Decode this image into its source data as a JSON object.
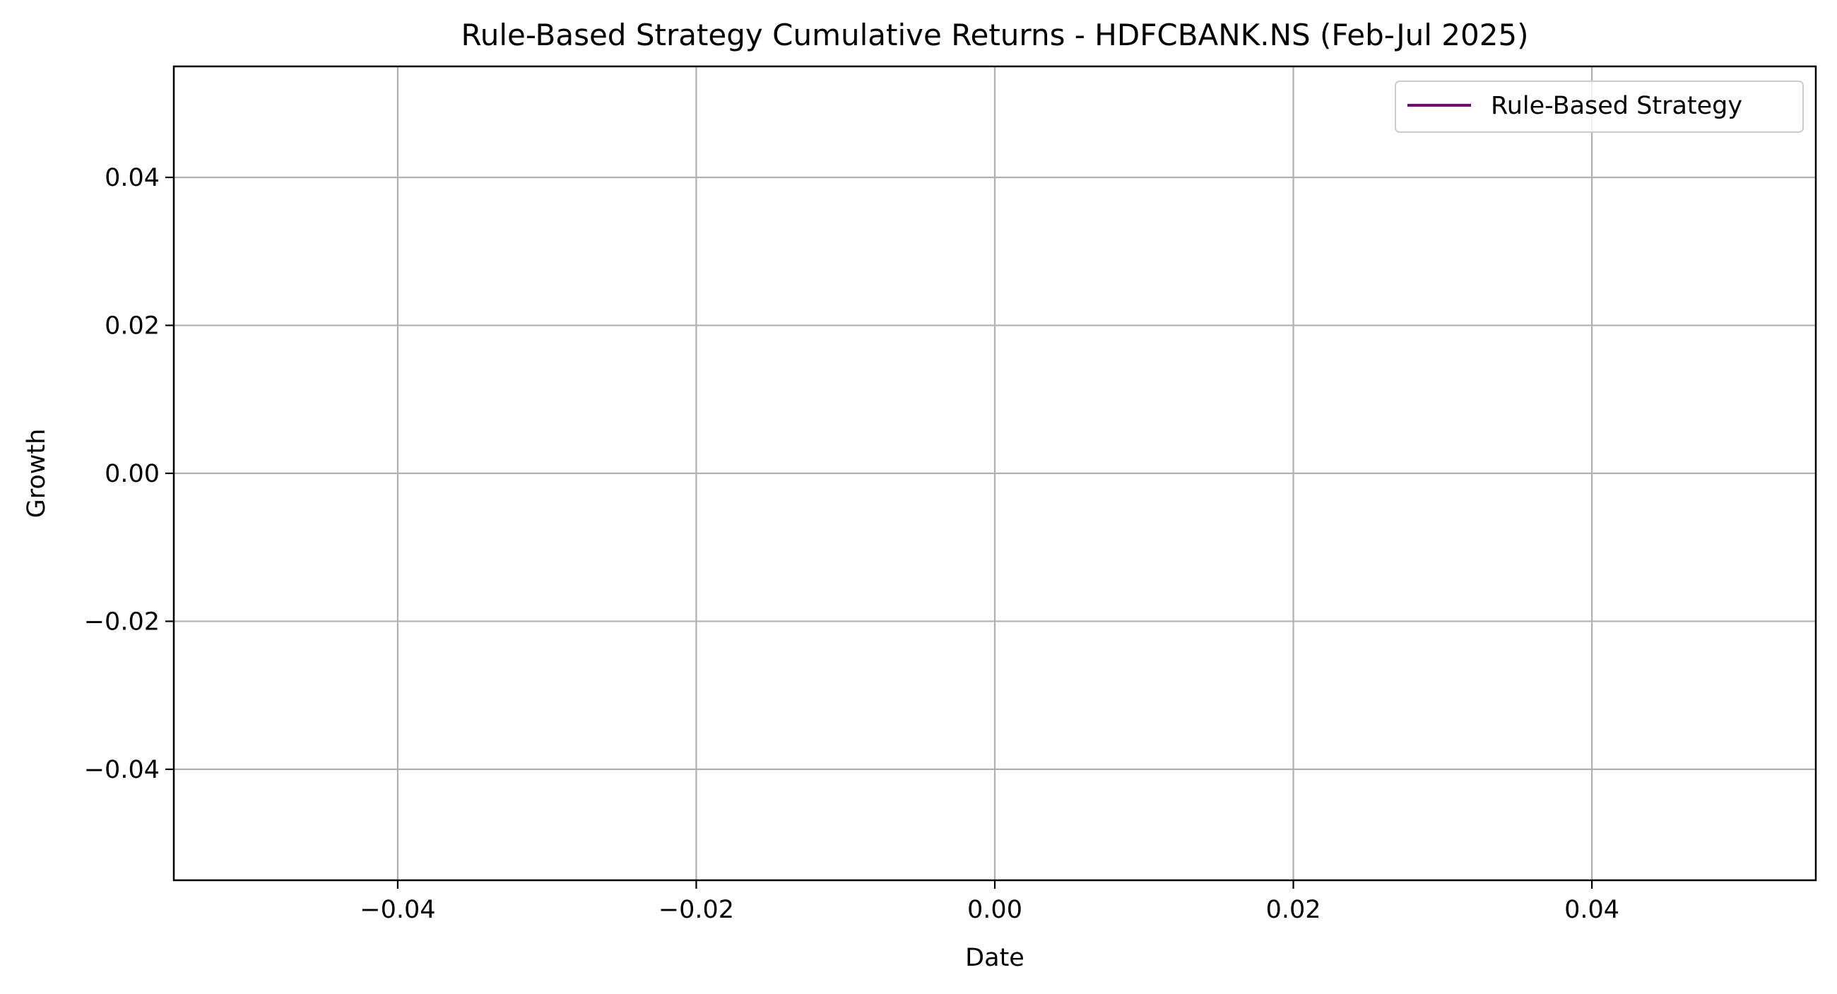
{
  "chart_data": {
    "type": "line",
    "title": "Rule-Based Strategy Cumulative Returns - HDFCBANK.NS (Feb-Jul 2025)",
    "xlabel": "Date",
    "ylabel": "Growth",
    "xlim": [
      -0.055,
      0.055
    ],
    "ylim": [
      -0.055,
      0.055
    ],
    "x_ticks": [
      -0.04,
      -0.02,
      0.0,
      0.02,
      0.04
    ],
    "y_ticks": [
      -0.04,
      -0.02,
      0.0,
      0.02,
      0.04
    ],
    "x_tick_labels": [
      "−0.04",
      "−0.02",
      "0.00",
      "0.02",
      "0.04"
    ],
    "y_tick_labels": [
      "−0.04",
      "−0.02",
      "0.00",
      "0.02",
      "0.04"
    ],
    "grid": true,
    "legend": {
      "placement": "top-right",
      "entries": [
        "Rule-Based Strategy"
      ]
    },
    "series": [
      {
        "name": "Rule-Based Strategy",
        "color": "#800080",
        "x": [],
        "y": []
      }
    ]
  }
}
